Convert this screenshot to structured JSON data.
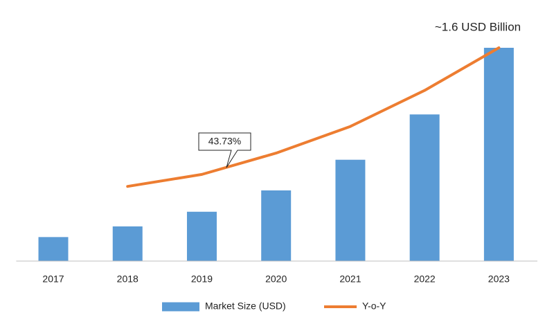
{
  "chart_data": {
    "type": "bar_line",
    "categories": [
      "2017",
      "2018",
      "2019",
      "2020",
      "2021",
      "2022",
      "2023"
    ],
    "series": [
      {
        "name": "Market Size (USD)",
        "type": "bar",
        "color": "#5b9bd5",
        "values": [
          0.18,
          0.26,
          0.37,
          0.53,
          0.76,
          1.1,
          1.6
        ]
      },
      {
        "name": "Y-o-Y",
        "type": "line",
        "color": "#ed7d31",
        "values": [
          null,
          0.56,
          0.65,
          0.81,
          1.01,
          1.28,
          1.6
        ]
      }
    ],
    "ylim": [
      0,
      1.6
    ],
    "annotations": [
      "~1.6 USD Billion",
      "43.73%"
    ],
    "legend": "bottom"
  }
}
